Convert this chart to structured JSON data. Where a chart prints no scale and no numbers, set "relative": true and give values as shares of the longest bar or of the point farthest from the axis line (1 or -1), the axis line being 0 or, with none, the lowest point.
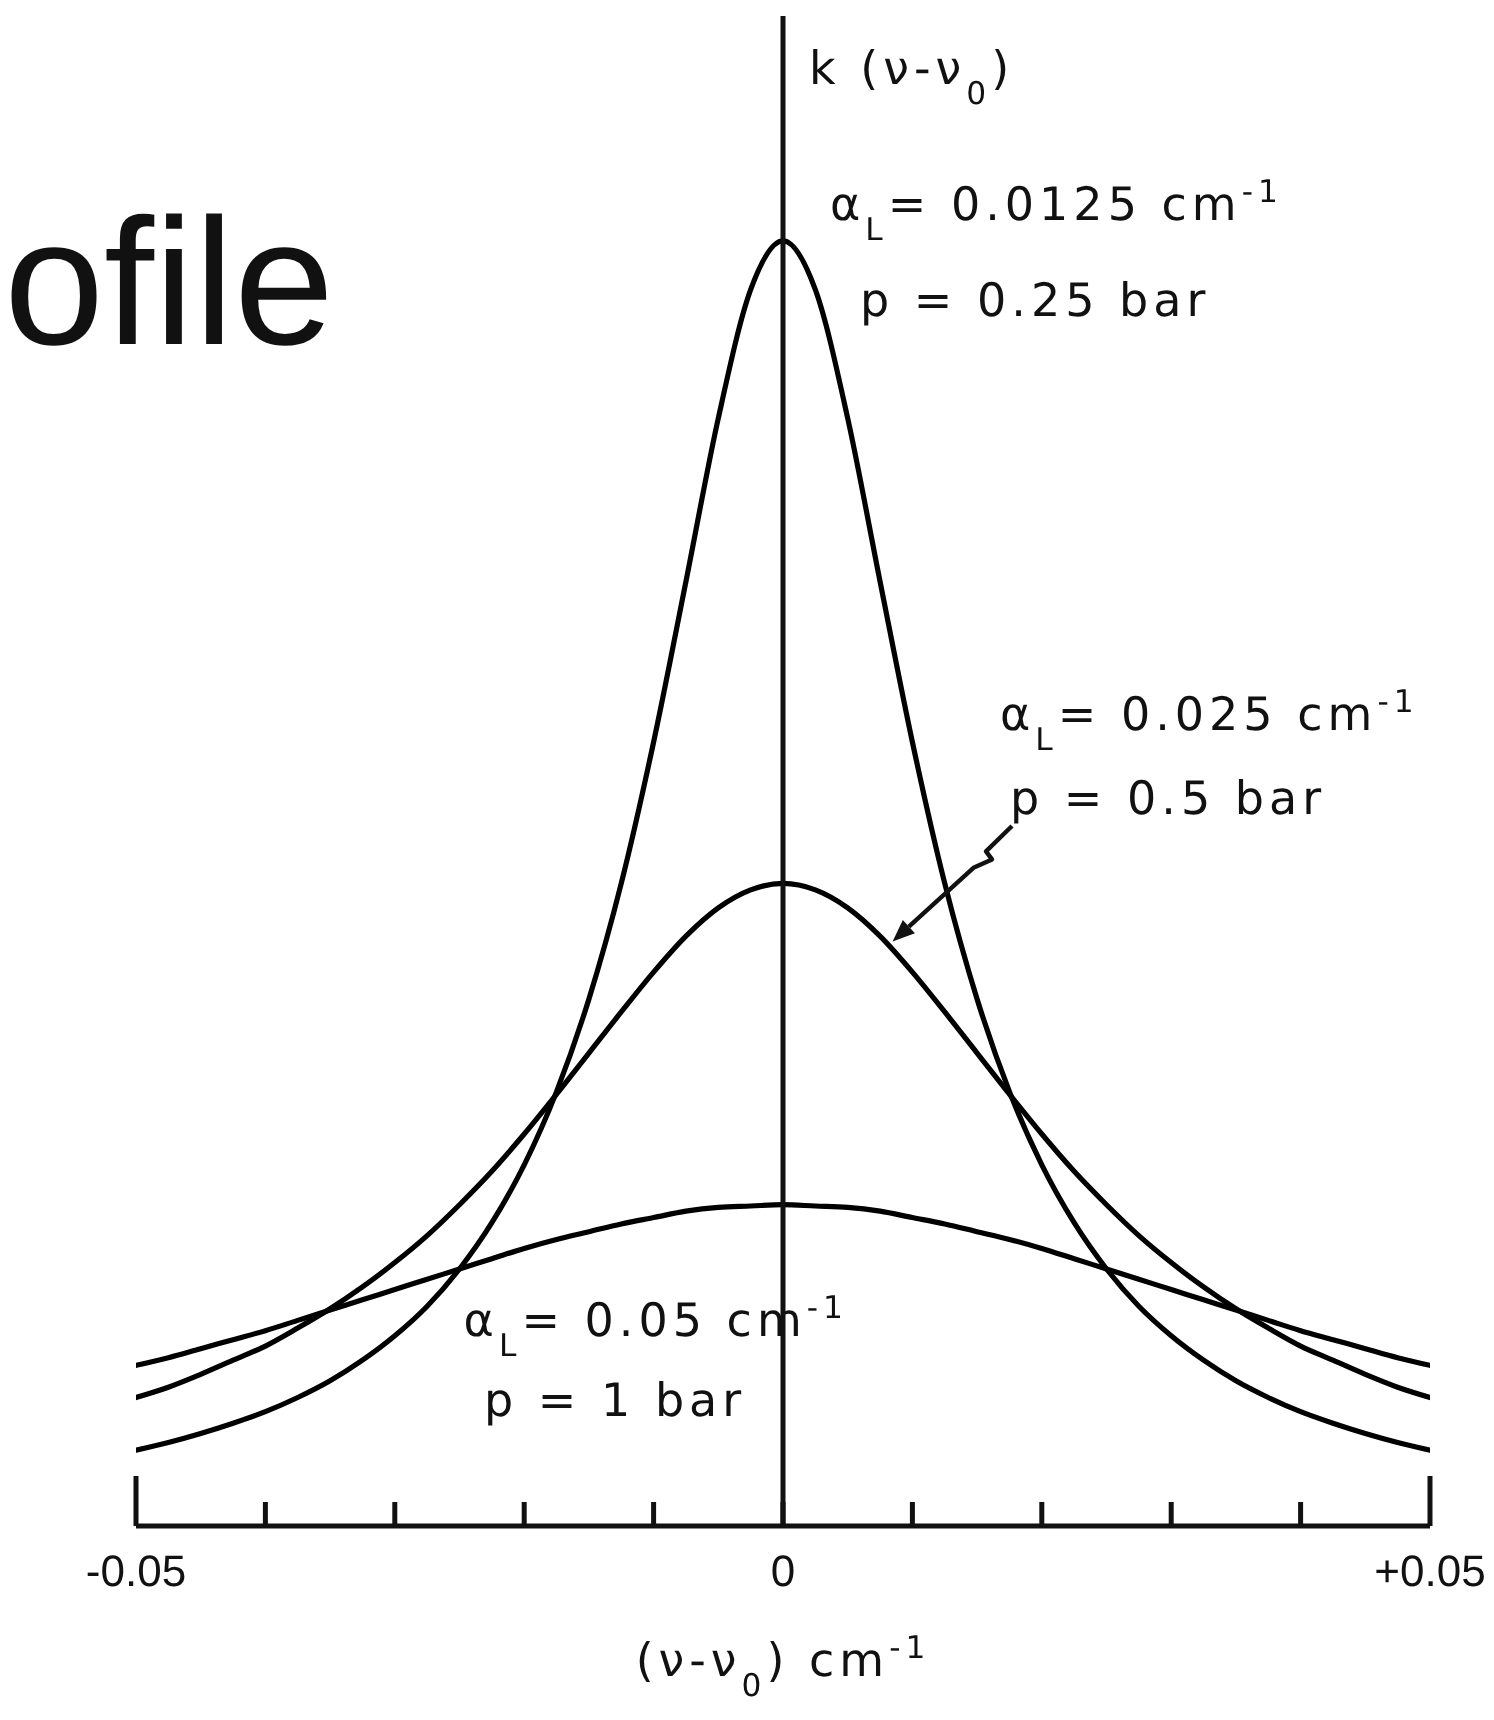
{
  "chart_data": {
    "type": "line",
    "title": "ofile",
    "xlabel": "(ν-ν$_{0}$) cm$^{-1}$",
    "ylabel": "k (ν-ν$_{0}$)",
    "relative": true,
    "x": [
      -0.05,
      -0.0475,
      -0.045,
      -0.0425,
      -0.04,
      -0.0375,
      -0.035,
      -0.0325,
      -0.03,
      -0.0275,
      -0.025,
      -0.0225,
      -0.02,
      -0.0175,
      -0.015,
      -0.0125,
      -0.01,
      -0.0075,
      -0.005,
      -0.0025,
      0,
      0.0025,
      0.005,
      0.0075,
      0.01,
      0.0125,
      0.015,
      0.0175,
      0.02,
      0.0225,
      0.025,
      0.0275,
      0.03,
      0.0325,
      0.035,
      0.0375,
      0.04,
      0.0425,
      0.045,
      0.0475,
      0.05
    ],
    "series": [
      {
        "color": "#000000",
        "values": [
          0.059,
          0.065,
          0.072,
          0.08,
          0.089,
          0.1,
          0.113,
          0.129,
          0.148,
          0.171,
          0.2,
          0.236,
          0.281,
          0.338,
          0.41,
          0.5,
          0.61,
          0.735,
          0.862,
          0.962,
          1,
          0.962,
          0.862,
          0.735,
          0.61,
          0.5,
          0.41,
          0.338,
          0.281,
          0.236,
          0.2,
          0.171,
          0.148,
          0.129,
          0.113,
          0.1,
          0.089,
          0.08,
          0.072,
          0.065,
          0.059
        ]
      },
      {
        "color": "#000000",
        "values": [
          0.1,
          0.108,
          0.118,
          0.129,
          0.14,
          0.154,
          0.169,
          0.186,
          0.205,
          0.226,
          0.25,
          0.276,
          0.305,
          0.336,
          0.368,
          0.4,
          0.431,
          0.459,
          0.481,
          0.495,
          0.5,
          0.495,
          0.481,
          0.459,
          0.431,
          0.4,
          0.368,
          0.336,
          0.305,
          0.276,
          0.25,
          0.226,
          0.205,
          0.186,
          0.169,
          0.154,
          0.14,
          0.129,
          0.118,
          0.108,
          0.1
        ]
      },
      {
        "color": "#000000",
        "values": [
          0.125,
          0.131,
          0.138,
          0.145,
          0.152,
          0.16,
          0.168,
          0.176,
          0.184,
          0.192,
          0.2,
          0.208,
          0.216,
          0.223,
          0.229,
          0.235,
          0.24,
          0.245,
          0.248,
          0.249,
          0.25,
          0.249,
          0.248,
          0.245,
          0.24,
          0.235,
          0.229,
          0.223,
          0.216,
          0.208,
          0.2,
          0.192,
          0.184,
          0.176,
          0.168,
          0.16,
          0.152,
          0.145,
          0.138,
          0.131,
          0.125
        ]
      }
    ],
    "xlim": [
      -0.05,
      0.05
    ],
    "xticks": [
      -0.05,
      {
        "value": -0.04,
        "label": null
      },
      {
        "value": -0.03,
        "label": null
      },
      {
        "value": -0.02,
        "label": null
      },
      {
        "value": -0.01,
        "label": null
      },
      0,
      {
        "value": 0.01,
        "label": null
      },
      {
        "value": 0.02,
        "label": null
      },
      {
        "value": 0.03,
        "label": null
      },
      {
        "value": 0.04,
        "label": null
      },
      {
        "value": 0.05,
        "label": "+0.05"
      }
    ],
    "line_style": "solid",
    "annotations": [
      "α$_{L}$= 0.0125 cm$^{-1}$",
      "p = 0.25 bar",
      "α$_{L}$= 0.025 cm$^{-1}$",
      "p = 0.5 bar",
      {
        "text": "α$_{L}$= 0.05 cm$^{-1}$",
        "x": -0.01,
        "y": 0.24
      },
      "p = 1 bar"
    ]
  }
}
